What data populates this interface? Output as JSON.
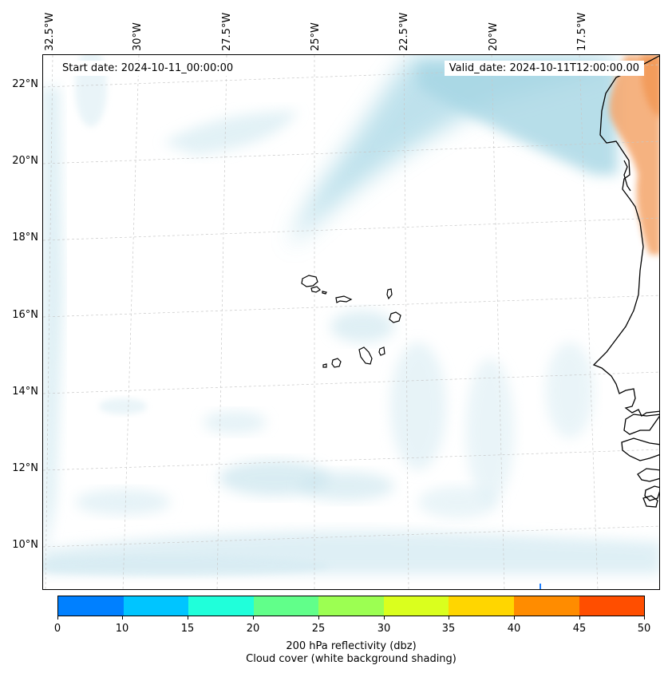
{
  "header": {
    "start_date": "Start date: 2024-10-11_00:00:00",
    "valid_date": "Valid_date: 2024-10-11T12:00:00.00"
  },
  "map": {
    "longitude_labels": [
      "32.5°W",
      "30°W",
      "27.5°W",
      "25°W",
      "22.5°W",
      "20°W",
      "17.5°W"
    ],
    "latitude_labels": [
      "22°N",
      "20°N",
      "18°N",
      "16°N",
      "14°N",
      "12°N",
      "10°N"
    ],
    "features": [
      "coastline-west-africa",
      "cape-verde-islands",
      "cloud-cover-shading",
      "dust-reflectivity-shading"
    ]
  },
  "colorbar": {
    "ticks": [
      "0",
      "10",
      "15",
      "20",
      "25",
      "30",
      "35",
      "40",
      "45",
      "50"
    ],
    "colors": [
      "#0080ff",
      "#00c5ff",
      "#20ffda",
      "#61ff8a",
      "#9cff52",
      "#daff1e",
      "#ffd600",
      "#ff8c00",
      "#ff4e00"
    ],
    "label_line1": "200 hPa reflectivity (dbz)",
    "label_line2": "Cloud cover (white background shading)"
  }
}
